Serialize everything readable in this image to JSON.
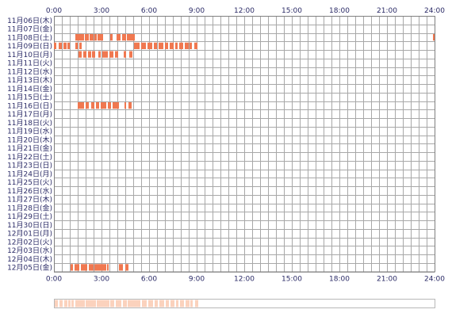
{
  "chart_data": {
    "type": "heatmap",
    "title": "",
    "xlabel": "",
    "ylabel": "",
    "x_range_hours": [
      0,
      24
    ],
    "x_ticks": [
      "0:00",
      "3:00",
      "6:00",
      "9:00",
      "12:00",
      "15:00",
      "18:00",
      "21:00",
      "24:00"
    ],
    "y_categories": [
      "11月06日(木)",
      "11月07日(金)",
      "11月08日(土)",
      "11月09日(日)",
      "11月10日(月)",
      "11月11日(火)",
      "11月12日(水)",
      "11月13日(木)",
      "11月14日(金)",
      "11月15日(土)",
      "11月16日(日)",
      "11月17日(月)",
      "11月18日(火)",
      "11月19日(水)",
      "11月20日(木)",
      "11月21日(金)",
      "11月22日(土)",
      "11月23日(日)",
      "11月24日(月)",
      "11月25日(火)",
      "11月26日(水)",
      "11月27日(木)",
      "11月28日(金)",
      "11月29日(土)",
      "11月30日(日)",
      "12月01日(月)",
      "12月02日(火)",
      "12月03日(水)",
      "12月04日(木)",
      "12月05日(金)"
    ],
    "grid": true,
    "colors": {
      "active": "#f07850",
      "grid": "#a8a8a8",
      "border": "#808080",
      "label": "#2a2a66",
      "summary_bg": "#fff7f2"
    },
    "active_periods": [
      {
        "row": 2,
        "intervals": [
          [
            1.35,
            1.9
          ],
          [
            1.95,
            2.2
          ],
          [
            2.25,
            2.5
          ],
          [
            2.55,
            2.7
          ],
          [
            2.75,
            3.1
          ],
          [
            3.55,
            3.7
          ],
          [
            3.95,
            4.2
          ],
          [
            4.3,
            4.55
          ],
          [
            4.6,
            5.1
          ],
          [
            23.9,
            24.0
          ]
        ]
      },
      {
        "row": 3,
        "intervals": [
          [
            0.0,
            0.15
          ],
          [
            0.3,
            0.5
          ],
          [
            0.6,
            0.8
          ],
          [
            0.85,
            1.0
          ],
          [
            1.35,
            1.5
          ],
          [
            1.6,
            1.75
          ],
          [
            5.05,
            5.4
          ],
          [
            5.5,
            5.8
          ],
          [
            5.9,
            6.2
          ],
          [
            6.3,
            6.5
          ],
          [
            6.6,
            6.9
          ],
          [
            7.0,
            7.2
          ],
          [
            7.3,
            7.55
          ],
          [
            7.65,
            7.8
          ],
          [
            7.9,
            8.15
          ],
          [
            8.25,
            8.5
          ],
          [
            8.55,
            8.7
          ],
          [
            8.85,
            9.05
          ]
        ]
      },
      {
        "row": 4,
        "intervals": [
          [
            1.55,
            1.75
          ],
          [
            1.85,
            2.05
          ],
          [
            2.15,
            2.35
          ],
          [
            2.4,
            2.6
          ],
          [
            2.8,
            2.95
          ],
          [
            3.05,
            3.4
          ],
          [
            3.5,
            3.75
          ],
          [
            3.85,
            4.05
          ],
          [
            4.4,
            4.55
          ],
          [
            4.75,
            4.95
          ]
        ]
      },
      {
        "row": 10,
        "intervals": [
          [
            1.5,
            1.9
          ],
          [
            2.0,
            2.2
          ],
          [
            2.35,
            2.55
          ],
          [
            2.65,
            2.85
          ],
          [
            2.95,
            3.3
          ],
          [
            3.4,
            3.6
          ],
          [
            3.7,
            4.1
          ],
          [
            4.45,
            4.55
          ],
          [
            4.7,
            4.9
          ]
        ]
      },
      {
        "row": 29,
        "intervals": [
          [
            1.05,
            1.2
          ],
          [
            1.3,
            1.6
          ],
          [
            1.7,
            2.1
          ],
          [
            2.2,
            2.5
          ],
          [
            2.55,
            3.3
          ],
          [
            3.35,
            3.45
          ],
          [
            4.1,
            4.35
          ],
          [
            4.5,
            4.7
          ]
        ]
      }
    ],
    "summary_strip_shaded_hours": [
      [
        0.0,
        0.2
      ],
      [
        0.3,
        0.5
      ],
      [
        0.6,
        0.8
      ],
      [
        0.85,
        1.0
      ],
      [
        1.05,
        1.2
      ],
      [
        1.3,
        1.9
      ],
      [
        1.95,
        2.6
      ],
      [
        2.65,
        3.45
      ],
      [
        3.5,
        3.75
      ],
      [
        3.85,
        4.2
      ],
      [
        4.3,
        4.55
      ],
      [
        4.6,
        5.1
      ],
      [
        5.05,
        5.4
      ],
      [
        5.5,
        5.8
      ],
      [
        5.9,
        6.2
      ],
      [
        6.3,
        6.5
      ],
      [
        6.6,
        6.9
      ],
      [
        7.0,
        7.2
      ],
      [
        7.3,
        7.55
      ],
      [
        7.65,
        7.8
      ],
      [
        7.9,
        8.15
      ],
      [
        8.25,
        8.5
      ],
      [
        8.55,
        8.7
      ],
      [
        8.85,
        9.05
      ]
    ]
  }
}
